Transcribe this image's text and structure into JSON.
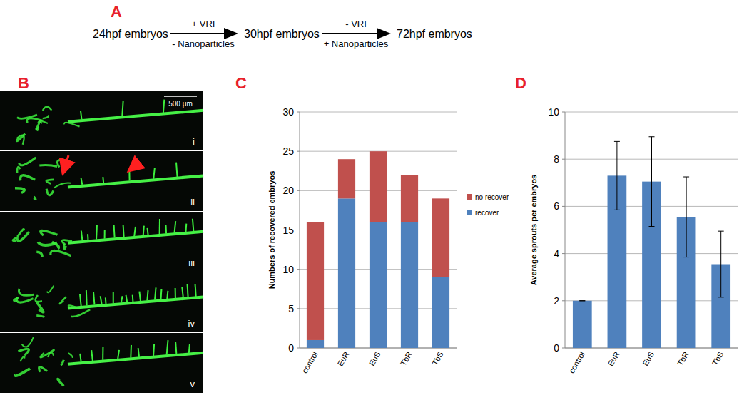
{
  "diagram": {
    "label": "A",
    "steps": [
      "24hpf embryos",
      "30hpf embryos",
      "72hpf embryos"
    ],
    "arrows": [
      {
        "above": "+ VRI",
        "below": "- Nanoparticles"
      },
      {
        "above": "- VRI",
        "below": "+ Nanoparticles"
      }
    ]
  },
  "images": {
    "label": "B",
    "scale_bar": "500 μm",
    "panels": [
      "i",
      "ii",
      "iii",
      "iv",
      "v"
    ]
  },
  "chart_data": [
    {
      "type": "bar",
      "annotations": [
        "C"
      ],
      "y_label": "Numbers of recovered embryos",
      "categories": [
        "control",
        "EuR",
        "EuS",
        "TbR",
        "TbS"
      ],
      "series": [
        {
          "name": "recover",
          "color": "#4f81bd",
          "values": [
            1,
            19,
            16,
            16,
            9
          ]
        },
        {
          "name": "no recover",
          "color": "#c0504d",
          "values": [
            15,
            5,
            9,
            6,
            10
          ]
        }
      ],
      "stacked": true,
      "ylim": [
        0,
        30
      ],
      "yticks": [
        0,
        5,
        10,
        15,
        20,
        25,
        30
      ],
      "grid": true,
      "legend": "right"
    },
    {
      "type": "bar",
      "annotations": [
        "D"
      ],
      "y_label": "Average sprouts per embryos",
      "categories": [
        "control",
        "EuR",
        "EuS",
        "TbR",
        "TbS"
      ],
      "values": [
        2,
        7.3,
        7.05,
        5.55,
        3.55
      ],
      "errors": [
        0,
        1.45,
        1.9,
        1.7,
        1.4
      ],
      "color": "#4f81bd",
      "ylim": [
        0,
        10
      ],
      "yticks": [
        0,
        2,
        4,
        6,
        8,
        10
      ],
      "grid": true
    }
  ]
}
